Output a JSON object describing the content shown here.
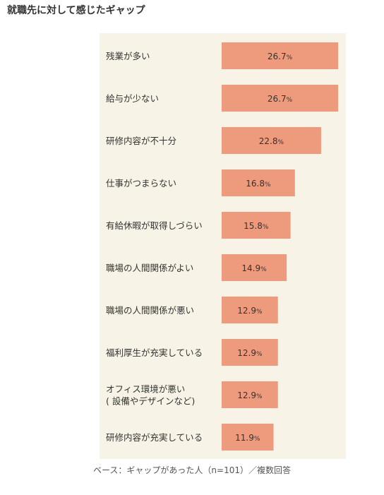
{
  "title": "就職先に対して感じたギャップ",
  "footnote": "ベース：ギャップがあった人（n=101）／複数回答",
  "colors": {
    "bar": "#ee9a7c",
    "background": "#f7f3e6",
    "text": "#333333"
  },
  "chart_data": {
    "type": "bar",
    "orientation": "horizontal",
    "unit": "%",
    "categories": [
      [
        "残業が多い"
      ],
      [
        "給与が少ない"
      ],
      [
        "研修内容が不十分"
      ],
      [
        "仕事がつまらない"
      ],
      [
        "有給休暇が取得しづらい"
      ],
      [
        "職場の人間関係がよい"
      ],
      [
        "職場の人間関係が悪い"
      ],
      [
        "福利厚生が充実している"
      ],
      [
        "オフィス環境が悪い",
        "( 設備やデザインなど)"
      ],
      [
        "研修内容が充実している"
      ]
    ],
    "values": [
      26.7,
      26.7,
      22.8,
      16.8,
      15.8,
      14.9,
      12.9,
      12.9,
      12.9,
      11.9
    ],
    "value_labels": [
      "26.7",
      "26.7",
      "22.8",
      "16.8",
      "15.8",
      "14.9",
      "12.9",
      "12.9",
      "12.9",
      "11.9"
    ],
    "xlim": [
      0,
      27
    ],
    "grid": false,
    "legend": "none"
  }
}
